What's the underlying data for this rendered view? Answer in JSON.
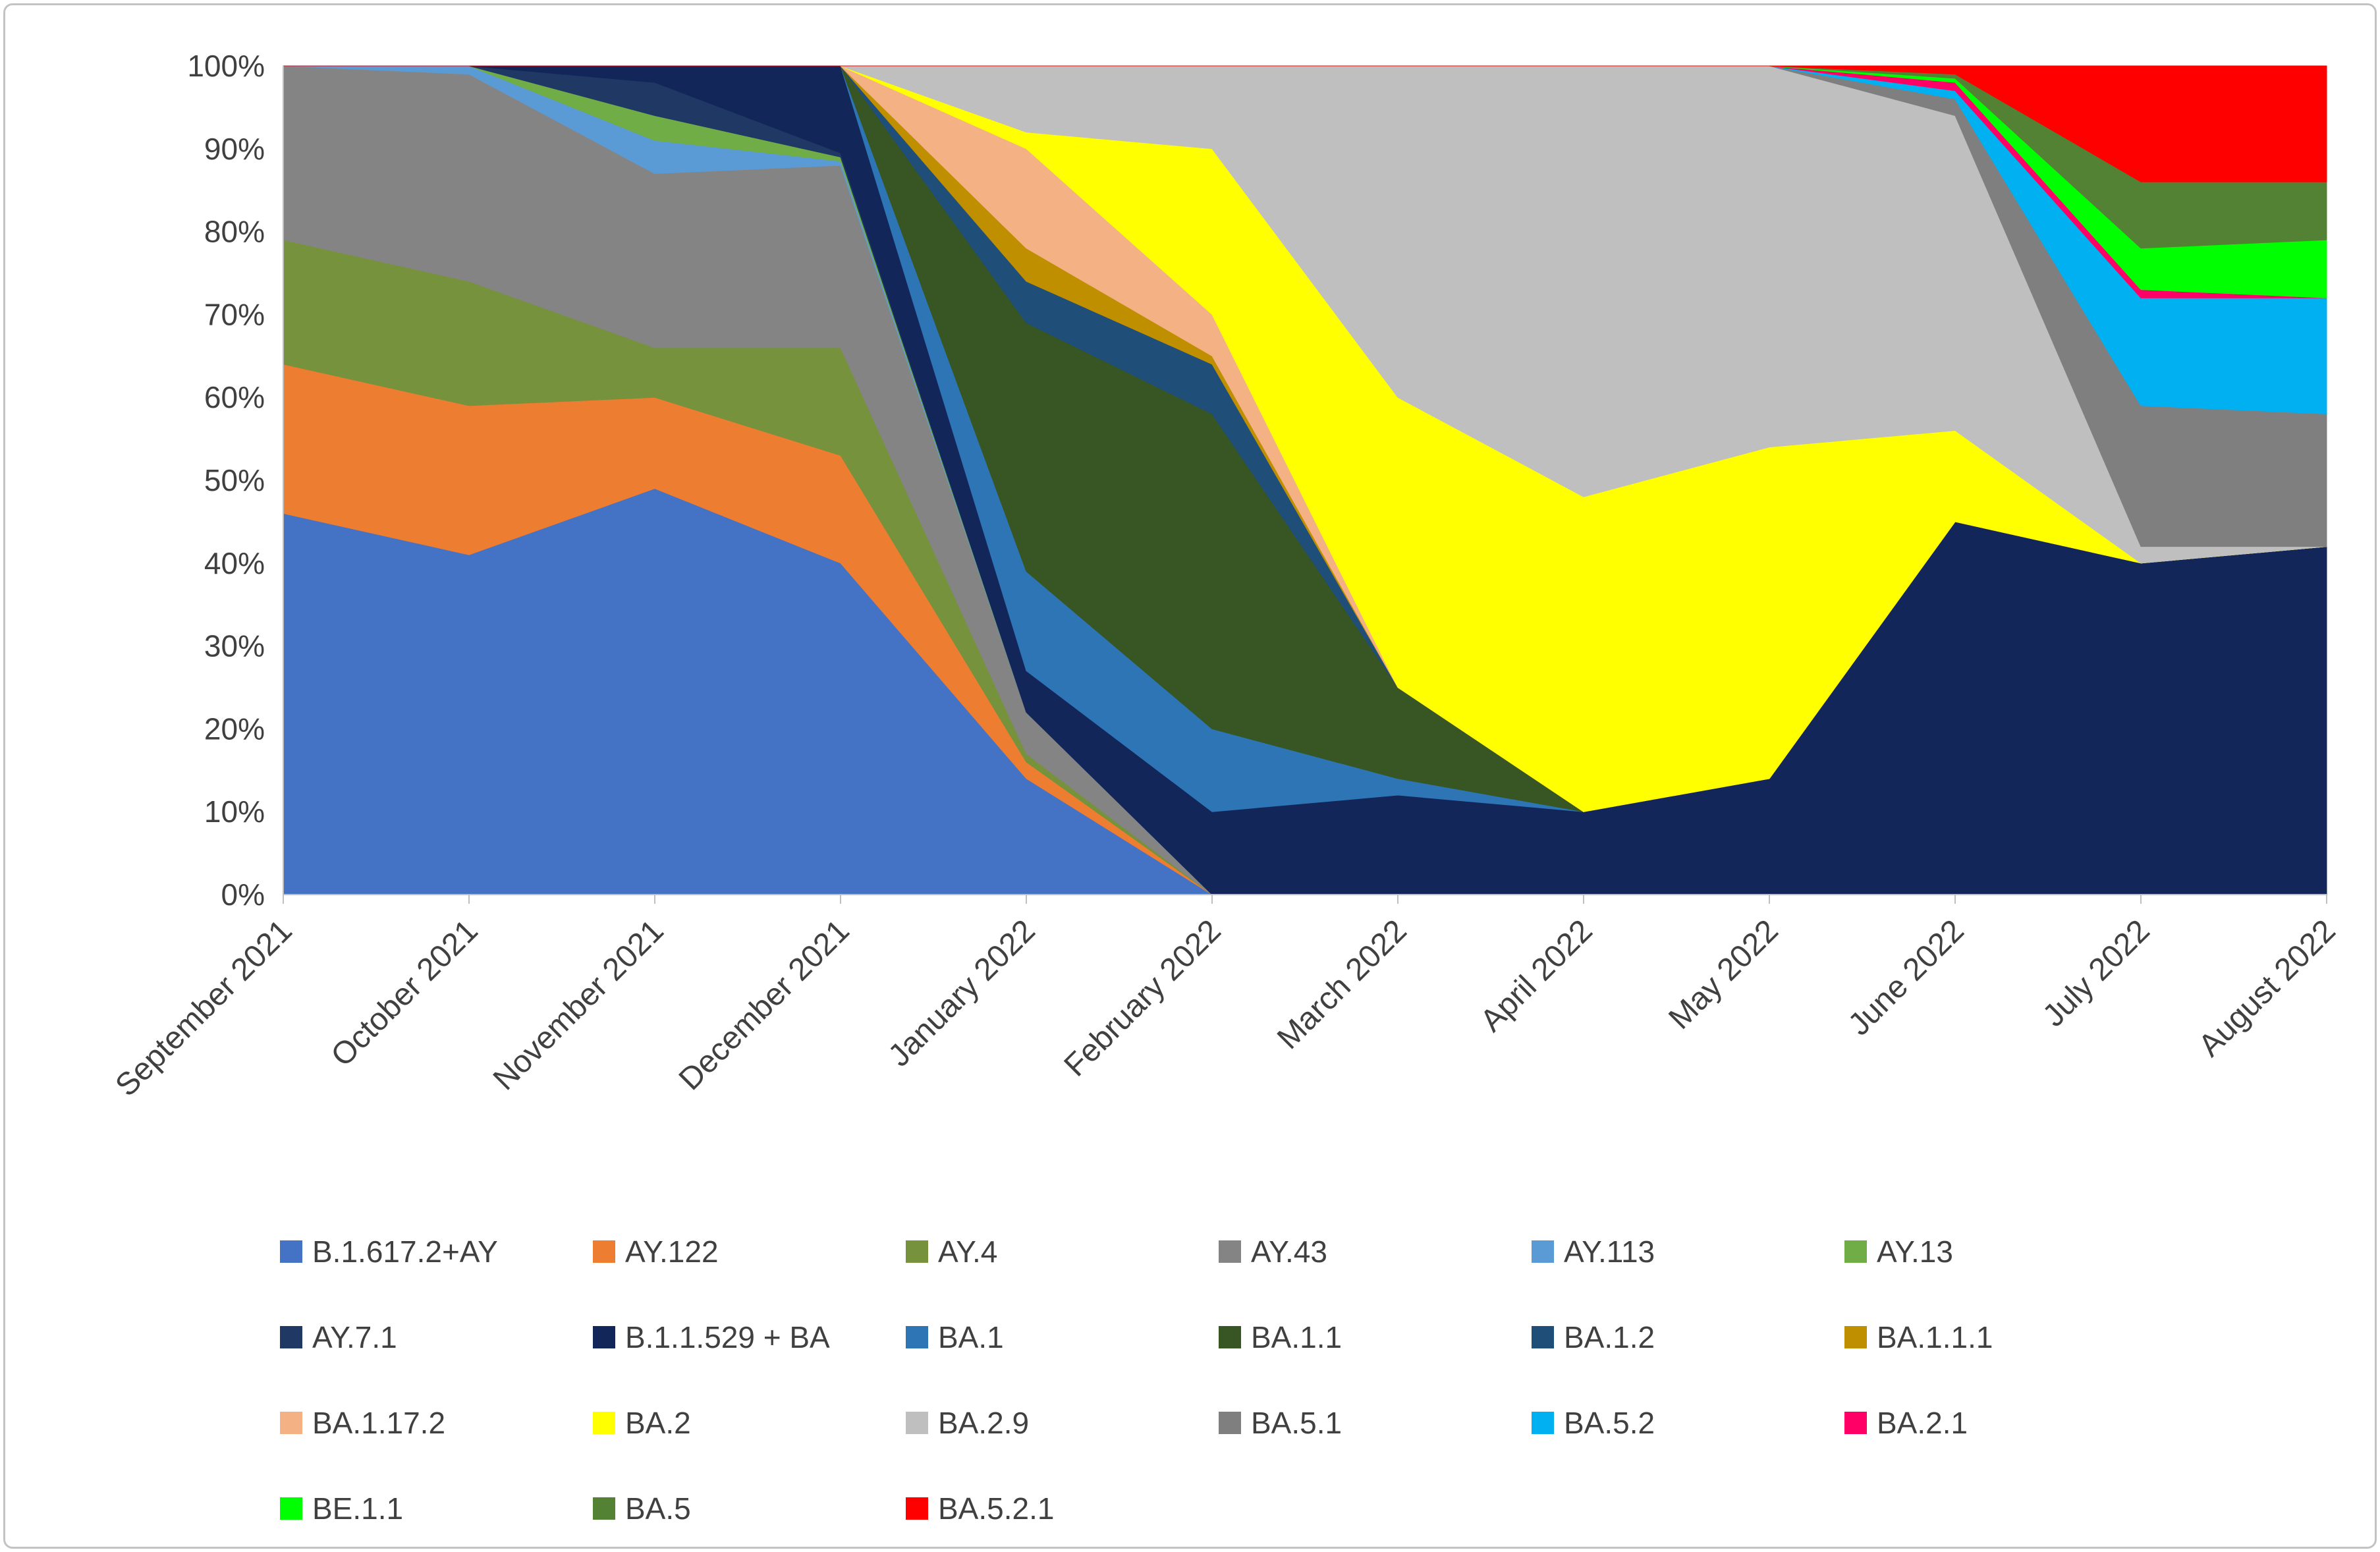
{
  "figure": {
    "title": "",
    "border_color": "#c3c3c3",
    "background": "#ffffff"
  },
  "chart_data": {
    "type": "area",
    "stacked": true,
    "normalized_percent": true,
    "grid": false,
    "legend_position": "bottom",
    "legend_columns": 6,
    "ylim": [
      0,
      100
    ],
    "y_ticks": [
      "0%",
      "10%",
      "20%",
      "30%",
      "40%",
      "50%",
      "60%",
      "70%",
      "80%",
      "90%",
      "100%"
    ],
    "x": [
      "September 2021",
      "October 2021",
      "November 2021",
      "December 2021",
      "January 2022",
      "February 2022",
      "March 2022",
      "April 2022",
      "May 2022",
      "June 2022",
      "July 2022",
      "August 2022"
    ],
    "series": [
      {
        "name": "B.1.617.2+AY",
        "color": "#4472C4",
        "values": [
          46,
          41,
          49,
          40,
          14,
          0,
          0,
          0,
          0,
          0,
          0,
          0
        ]
      },
      {
        "name": "AY.122",
        "color": "#ED7D31",
        "values": [
          18,
          18,
          11,
          13,
          2,
          0,
          0,
          0,
          0,
          0,
          0,
          0
        ]
      },
      {
        "name": "AY.4",
        "color": "#76923C",
        "values": [
          15,
          15,
          6,
          13,
          1,
          0,
          0,
          0,
          0,
          0,
          0,
          0
        ]
      },
      {
        "name": "AY.43",
        "color": "#848484",
        "values": [
          21,
          25,
          21,
          22,
          5,
          0,
          0,
          0,
          0,
          0,
          0,
          0
        ]
      },
      {
        "name": "AY.113",
        "color": "#5B9BD5",
        "values": [
          0,
          1,
          4,
          0.5,
          0,
          0,
          0,
          0,
          0,
          0,
          0,
          0
        ]
      },
      {
        "name": "AY.13",
        "color": "#70AD47",
        "values": [
          0,
          0,
          3,
          0.5,
          0,
          0,
          0,
          0,
          0,
          0,
          0,
          0
        ]
      },
      {
        "name": "AY.7.1",
        "color": "#1F3864",
        "values": [
          0,
          0,
          4,
          0.5,
          0,
          0,
          0,
          0,
          0,
          0,
          0,
          0
        ]
      },
      {
        "name": "B.1.1.529 + BA",
        "color": "#12265A",
        "values": [
          0,
          0,
          2,
          10.5,
          5,
          10,
          12,
          10,
          14,
          45,
          40,
          42
        ]
      },
      {
        "name": "BA.1",
        "color": "#2E75B6",
        "values": [
          0,
          0,
          0,
          0,
          12,
          10,
          2,
          0,
          0,
          0,
          0,
          0
        ]
      },
      {
        "name": "BA.1.1",
        "color": "#375623",
        "values": [
          0,
          0,
          0,
          0,
          30,
          38,
          11,
          0,
          0,
          0,
          0,
          0
        ]
      },
      {
        "name": "BA.1.2",
        "color": "#1F4E79",
        "values": [
          0,
          0,
          0,
          0,
          5,
          6,
          0,
          0,
          0,
          0,
          0,
          0
        ]
      },
      {
        "name": "BA.1.1.1",
        "color": "#BF8F00",
        "values": [
          0,
          0,
          0,
          0,
          4,
          1,
          0,
          0,
          0,
          0,
          0,
          0
        ]
      },
      {
        "name": "BA.1.17.2",
        "color": "#F4B183",
        "values": [
          0,
          0,
          0,
          0,
          12,
          5,
          0,
          0,
          0,
          0,
          0,
          0
        ]
      },
      {
        "name": "BA.2",
        "color": "#FFFF00",
        "values": [
          0,
          0,
          0,
          0,
          2,
          20,
          35,
          38,
          40,
          11,
          0,
          0
        ]
      },
      {
        "name": "BA.2.9",
        "color": "#BFBFBF",
        "values": [
          0,
          0,
          0,
          0,
          8,
          10,
          40,
          52,
          46,
          38,
          2,
          0
        ]
      },
      {
        "name": "BA.5.1",
        "color": "#7F7F7F",
        "values": [
          0,
          0,
          0,
          0,
          0,
          0,
          0,
          0,
          0,
          2,
          17,
          16
        ]
      },
      {
        "name": "BA.5.2",
        "color": "#00B0F0",
        "values": [
          0,
          0,
          0,
          0,
          0,
          0,
          0,
          0,
          0,
          1,
          13,
          14
        ]
      },
      {
        "name": "BA.2.1",
        "color": "#FF0066",
        "values": [
          0,
          0,
          0,
          0,
          0,
          0,
          0,
          0,
          0,
          1,
          1,
          0
        ]
      },
      {
        "name": "BE.1.1",
        "color": "#00FF00",
        "values": [
          0,
          0,
          0,
          0,
          0,
          0,
          0,
          0,
          0,
          0.5,
          5,
          7
        ]
      },
      {
        "name": "BA.5",
        "color": "#548235",
        "values": [
          0,
          0,
          0,
          0,
          0,
          0,
          0,
          0,
          0,
          0.5,
          8,
          7
        ]
      },
      {
        "name": "BA.5.2.1",
        "color": "#FF0000",
        "values": [
          0,
          0,
          0,
          0,
          0,
          0,
          0,
          0,
          0,
          1,
          14,
          14
        ]
      }
    ]
  }
}
